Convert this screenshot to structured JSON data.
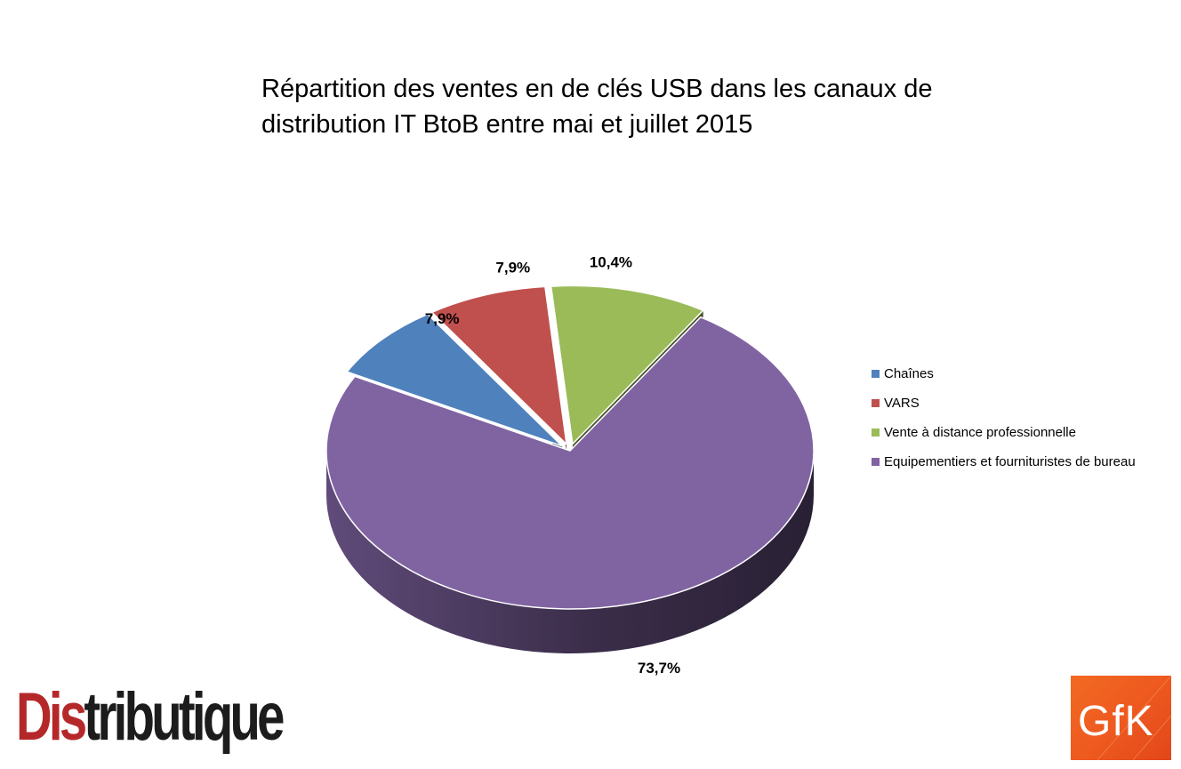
{
  "chart_data": {
    "type": "pie",
    "title_lines": [
      "Répartition des ventes en de clés USB dans les canaux de",
      "distribution IT BtoB entre mai et juillet 2015"
    ],
    "categories": [
      "Chaînes",
      "VARS",
      "Vente à distance professionnelle",
      "Equipementiers et fournituristes de bureau"
    ],
    "values": [
      7.9,
      7.9,
      10.4,
      73.7
    ],
    "data_labels": [
      "7,9%",
      "7,9%",
      "10,4%",
      "73,7%"
    ],
    "colors": [
      "#4f81bd",
      "#c0504d",
      "#9bbb59",
      "#8064a2"
    ],
    "legend_position": "right",
    "style": "3d"
  },
  "logos": {
    "distributique": {
      "part1": "Dis",
      "part2": "tributique"
    },
    "gfk": "GfK"
  }
}
